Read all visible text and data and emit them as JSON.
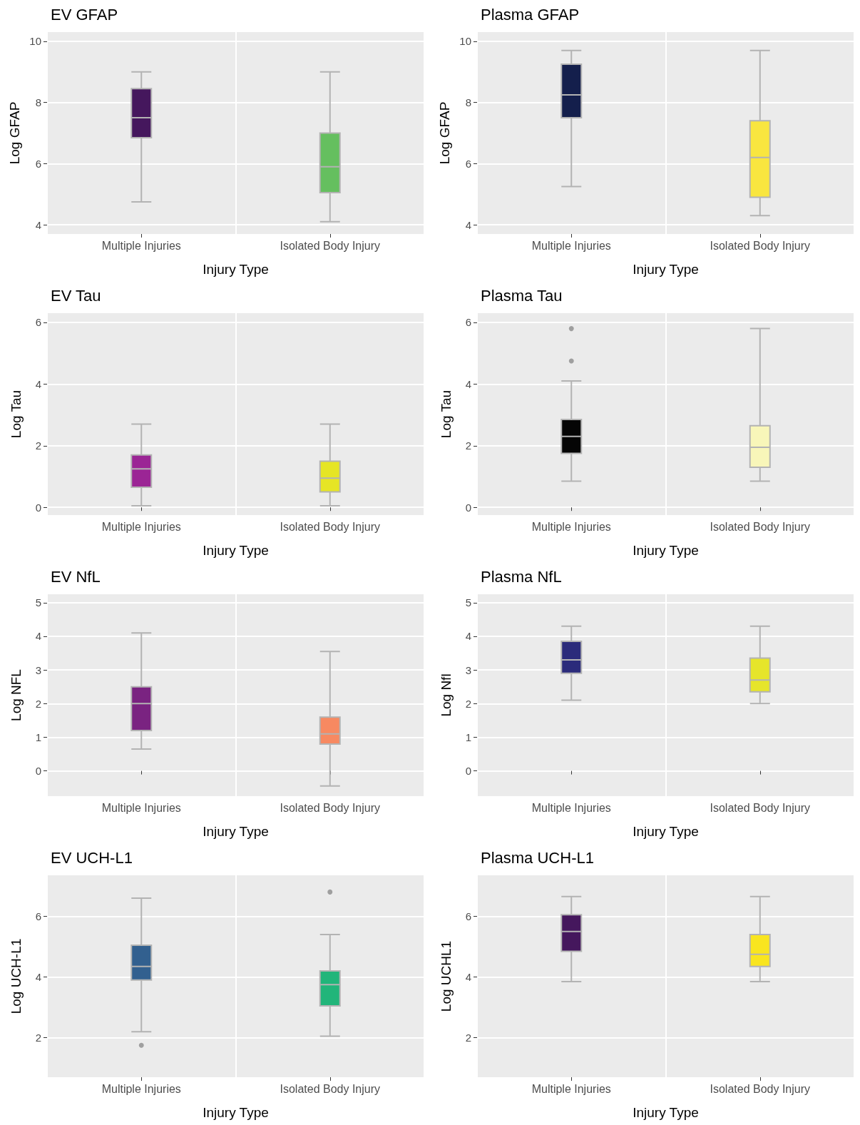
{
  "chart_data": [
    {
      "type": "box",
      "title": "EV GFAP",
      "xlabel": "Injury Type",
      "ylabel": "Log GFAP",
      "categories": [
        "Multiple Injuries",
        "Isolated Body Injury"
      ],
      "colors": [
        "#45175d",
        "#65bf5f"
      ],
      "ylim": [
        3.7,
        10.3
      ],
      "yticks": [
        4,
        6,
        8,
        10
      ],
      "grid": true,
      "boxes": [
        {
          "low": 4.75,
          "q1": 6.85,
          "median": 7.5,
          "q3": 8.45,
          "high": 9.0
        },
        {
          "low": 4.1,
          "q1": 5.05,
          "median": 5.9,
          "q3": 7.0,
          "high": 9.0
        }
      ]
    },
    {
      "type": "box",
      "title": "Plasma GFAP",
      "xlabel": "Injury Type",
      "ylabel": "Log GFAP",
      "categories": [
        "Multiple Injuries",
        "Isolated Body Injury"
      ],
      "colors": [
        "#141f4c",
        "#f9e63f"
      ],
      "ylim": [
        3.7,
        10.3
      ],
      "yticks": [
        4,
        6,
        8,
        10
      ],
      "grid": true,
      "boxes": [
        {
          "low": 5.25,
          "q1": 7.5,
          "median": 8.25,
          "q3": 9.25,
          "high": 9.7
        },
        {
          "low": 4.3,
          "q1": 4.9,
          "median": 6.2,
          "q3": 7.4,
          "high": 9.7
        }
      ]
    },
    {
      "type": "box",
      "title": "EV Tau",
      "xlabel": "Injury Type",
      "ylabel": "Log Tau",
      "categories": [
        "Multiple Injuries",
        "Isolated Body Injury"
      ],
      "colors": [
        "#9b2595",
        "#e6e525"
      ],
      "ylim": [
        -0.25,
        6.3
      ],
      "yticks": [
        0,
        2,
        4,
        6
      ],
      "grid": true,
      "boxes": [
        {
          "low": 0.05,
          "q1": 0.65,
          "median": 1.25,
          "q3": 1.7,
          "high": 2.7
        },
        {
          "low": 0.05,
          "q1": 0.5,
          "median": 0.95,
          "q3": 1.5,
          "high": 2.7
        }
      ]
    },
    {
      "type": "box",
      "title": "Plasma Tau",
      "xlabel": "Injury Type",
      "ylabel": "Log Tau",
      "categories": [
        "Multiple Injuries",
        "Isolated Body Injury"
      ],
      "colors": [
        "#050505",
        "#f8f6b9"
      ],
      "ylim": [
        -0.25,
        6.3
      ],
      "yticks": [
        0,
        2,
        4,
        6
      ],
      "grid": true,
      "boxes": [
        {
          "low": 0.85,
          "q1": 1.75,
          "median": 2.3,
          "q3": 2.85,
          "high": 4.1,
          "outliers": [
            4.75,
            5.8
          ]
        },
        {
          "low": 0.85,
          "q1": 1.3,
          "median": 1.95,
          "q3": 2.65,
          "high": 5.8
        }
      ]
    },
    {
      "type": "box",
      "title": "EV NfL",
      "xlabel": "Injury Type",
      "ylabel": "Log NFL",
      "categories": [
        "Multiple Injuries",
        "Isolated Body Injury"
      ],
      "colors": [
        "#7a2381",
        "#f78961"
      ],
      "ylim": [
        -0.75,
        5.25
      ],
      "yticks": [
        0,
        1,
        2,
        3,
        4,
        5
      ],
      "grid": true,
      "boxes": [
        {
          "low": 0.65,
          "q1": 1.2,
          "median": 2.0,
          "q3": 2.5,
          "high": 4.1
        },
        {
          "low": -0.45,
          "q1": 0.8,
          "median": 1.1,
          "q3": 1.6,
          "high": 3.55
        }
      ]
    },
    {
      "type": "box",
      "title": "Plasma NfL",
      "xlabel": "Injury Type",
      "ylabel": "Log Nfl",
      "categories": [
        "Multiple Injuries",
        "Isolated Body Injury"
      ],
      "colors": [
        "#2b2b7b",
        "#e6e52a"
      ],
      "ylim": [
        -0.75,
        5.25
      ],
      "yticks": [
        0,
        1,
        2,
        3,
        4,
        5
      ],
      "grid": true,
      "boxes": [
        {
          "low": 2.1,
          "q1": 2.9,
          "median": 3.3,
          "q3": 3.85,
          "high": 4.3
        },
        {
          "low": 2.0,
          "q1": 2.35,
          "median": 2.7,
          "q3": 3.35,
          "high": 4.3
        }
      ]
    },
    {
      "type": "box",
      "title": "EV UCH-L1",
      "xlabel": "Injury Type",
      "ylabel": "Log UCH-L1",
      "categories": [
        "Multiple Injuries",
        "Isolated Body Injury"
      ],
      "colors": [
        "#32608f",
        "#21b57a"
      ],
      "ylim": [
        0.7,
        7.35
      ],
      "yticks": [
        2,
        4,
        6
      ],
      "grid": true,
      "boxes": [
        {
          "low": 2.2,
          "q1": 3.9,
          "median": 4.35,
          "q3": 5.05,
          "high": 6.6,
          "outliers": [
            1.75
          ]
        },
        {
          "low": 2.05,
          "q1": 3.05,
          "median": 3.75,
          "q3": 4.2,
          "high": 5.4,
          "outliers": [
            6.8
          ]
        }
      ]
    },
    {
      "type": "box",
      "title": "Plasma UCH-L1",
      "xlabel": "Injury Type",
      "ylabel": "Log UCHL1",
      "categories": [
        "Multiple Injuries",
        "Isolated Body Injury"
      ],
      "colors": [
        "#45175d",
        "#f9e51f"
      ],
      "ylim": [
        0.7,
        7.35
      ],
      "yticks": [
        2,
        4,
        6
      ],
      "grid": true,
      "boxes": [
        {
          "low": 3.85,
          "q1": 4.85,
          "median": 5.5,
          "q3": 6.05,
          "high": 6.65
        },
        {
          "low": 3.85,
          "q1": 4.35,
          "median": 4.75,
          "q3": 5.4,
          "high": 6.65
        }
      ]
    }
  ]
}
